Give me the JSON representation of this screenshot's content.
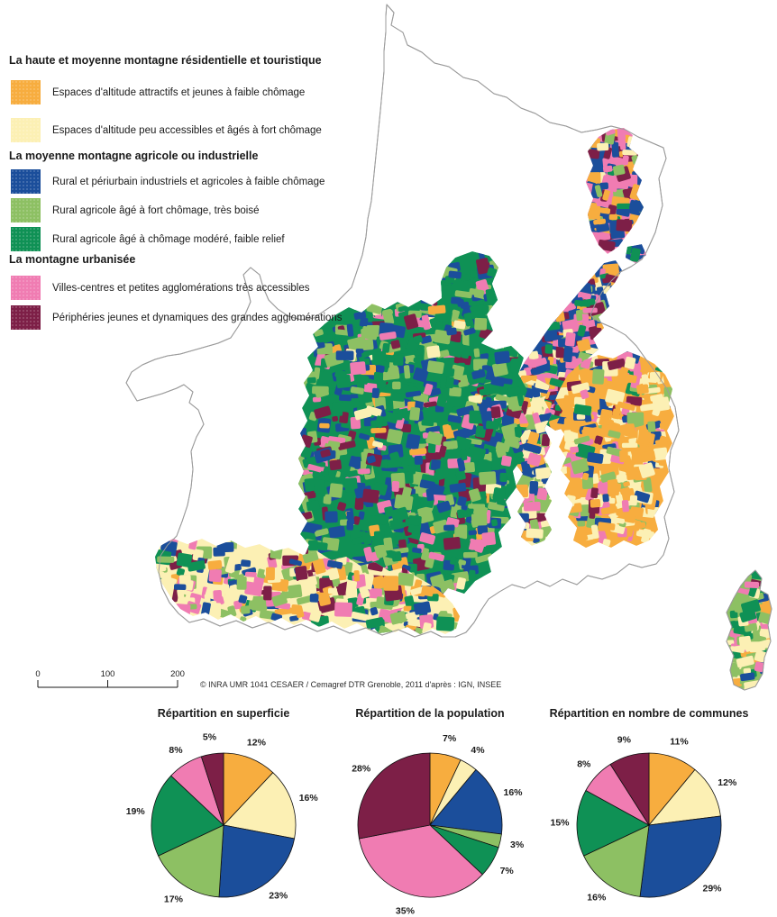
{
  "palette": {
    "orange": "#F7AD3F",
    "paleYellow": "#FCF0B4",
    "blue": "#1B4E9B",
    "lightGreen": "#8DC063",
    "darkGreen": "#0F9155",
    "pink": "#F07CB2",
    "maroon": "#7D1F47",
    "outline": "#9B9B9B",
    "text": "#1a1a1a"
  },
  "slice_colors": [
    "orange",
    "paleYellow",
    "blue",
    "lightGreen",
    "darkGreen",
    "pink",
    "maroon"
  ],
  "legend": {
    "groups": [
      {
        "title": "La haute et moyenne montagne résidentielle et touristique",
        "items": [
          {
            "color": "orange",
            "label": "Espaces d'altitude attractifs et jeunes à faible chômage"
          },
          {
            "color": "paleYellow",
            "label": "Espaces d'altitude peu accessibles et âgés à fort chômage"
          }
        ]
      },
      {
        "title": "La moyenne montagne agricole ou industrielle",
        "items": [
          {
            "color": "blue",
            "label": "Rural et périurbain industriels et agricoles à faible chômage"
          },
          {
            "color": "lightGreen",
            "label": "Rural agricole âgé à fort chômage, très boisé"
          },
          {
            "color": "darkGreen",
            "label": "Rural agricole âgé à chômage modéré, faible relief"
          }
        ]
      },
      {
        "title": "La montagne urbanisée",
        "items": [
          {
            "color": "pink",
            "label": "Villes-centres et petites agglomérations très accessibles"
          },
          {
            "color": "maroon",
            "label": "Périphéries jeunes et dynamiques des grandes agglomérations"
          }
        ]
      }
    ]
  },
  "scalebar": {
    "ticks": [
      "0",
      "100",
      "200"
    ]
  },
  "credit": "© INRA UMR 1041 CESAER / Cemagref DTR Grenoble, 2011 d'après : IGN, INSEE",
  "chart_data": [
    {
      "type": "pie",
      "title": "Répartition en superficie",
      "categories": [
        "Espaces d'altitude attractifs et jeunes à faible chômage",
        "Espaces d'altitude peu accessibles et âgés à fort chômage",
        "Rural et périurbain industriels et agricoles à faible chômage",
        "Rural agricole âgé à fort chômage, très boisé",
        "Rural agricole âgé à chômage modéré, faible relief",
        "Villes-centres et petites agglomérations très accessibles",
        "Périphéries jeunes et dynamiques des grandes agglomérations"
      ],
      "values": [
        12,
        16,
        23,
        17,
        19,
        8,
        5
      ],
      "unit": "%"
    },
    {
      "type": "pie",
      "title": "Répartition de la population",
      "categories": [
        "Espaces d'altitude attractifs et jeunes à faible chômage",
        "Espaces d'altitude peu accessibles et âgés à fort chômage",
        "Rural et périurbain industriels et agricoles à faible chômage",
        "Rural agricole âgé à fort chômage, très boisé",
        "Rural agricole âgé à chômage modéré, faible relief",
        "Villes-centres et petites agglomérations très accessibles",
        "Périphéries jeunes et dynamiques des grandes agglomérations"
      ],
      "values": [
        7,
        4,
        16,
        3,
        7,
        35,
        28
      ],
      "unit": "%"
    },
    {
      "type": "pie",
      "title": "Répartition en nombre de communes",
      "categories": [
        "Espaces d'altitude attractifs et jeunes à faible chômage",
        "Espaces d'altitude peu accessibles et âgés à fort chômage",
        "Rural et périurbain industriels et agricoles à faible chômage",
        "Rural agricole âgé à fort chômage, très boisé",
        "Rural agricole âgé à chômage modéré, faible relief",
        "Villes-centres et petites agglomérations très accessibles",
        "Périphéries jeunes et dynamiques des grandes agglomérations"
      ],
      "values": [
        11,
        12,
        29,
        16,
        15,
        8,
        9
      ],
      "unit": "%"
    }
  ]
}
